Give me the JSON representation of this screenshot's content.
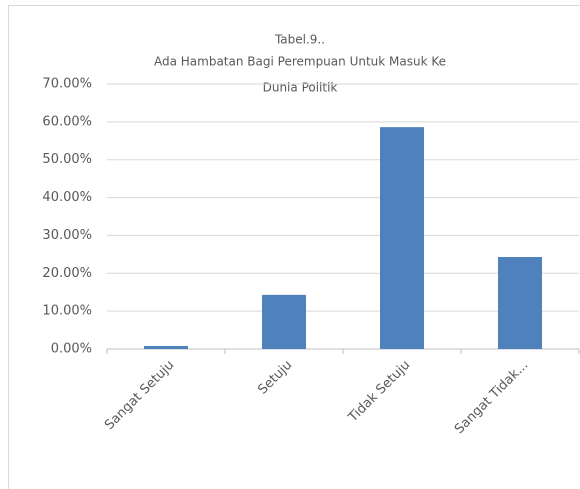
{
  "chart_data": {
    "type": "bar",
    "title": "Tabel.9..",
    "subtitle": [
      "Ada Hambatan Bagi Perempuan Untuk Masuk Ke",
      "Dunia Politik"
    ],
    "categories": [
      "Sangat Setuju",
      "Setuju",
      "Tidak Setuju",
      "Sangat Tidak..."
    ],
    "values": [
      0.8,
      14.3,
      58.6,
      24.3
    ],
    "color": "#4f81bd",
    "ylim": [
      0,
      70
    ],
    "yticks": [
      {
        "value": 0,
        "label": "0.00%"
      },
      {
        "value": 10,
        "label": "10.00%"
      },
      {
        "value": 20,
        "label": "20.00%"
      },
      {
        "value": 30,
        "label": "30.00%"
      },
      {
        "value": 40,
        "label": "40.00%"
      },
      {
        "value": 50,
        "label": "50.00%"
      },
      {
        "value": 60,
        "label": "60.00%"
      },
      {
        "value": 70,
        "label": "70.00%"
      }
    ],
    "grid": true
  }
}
